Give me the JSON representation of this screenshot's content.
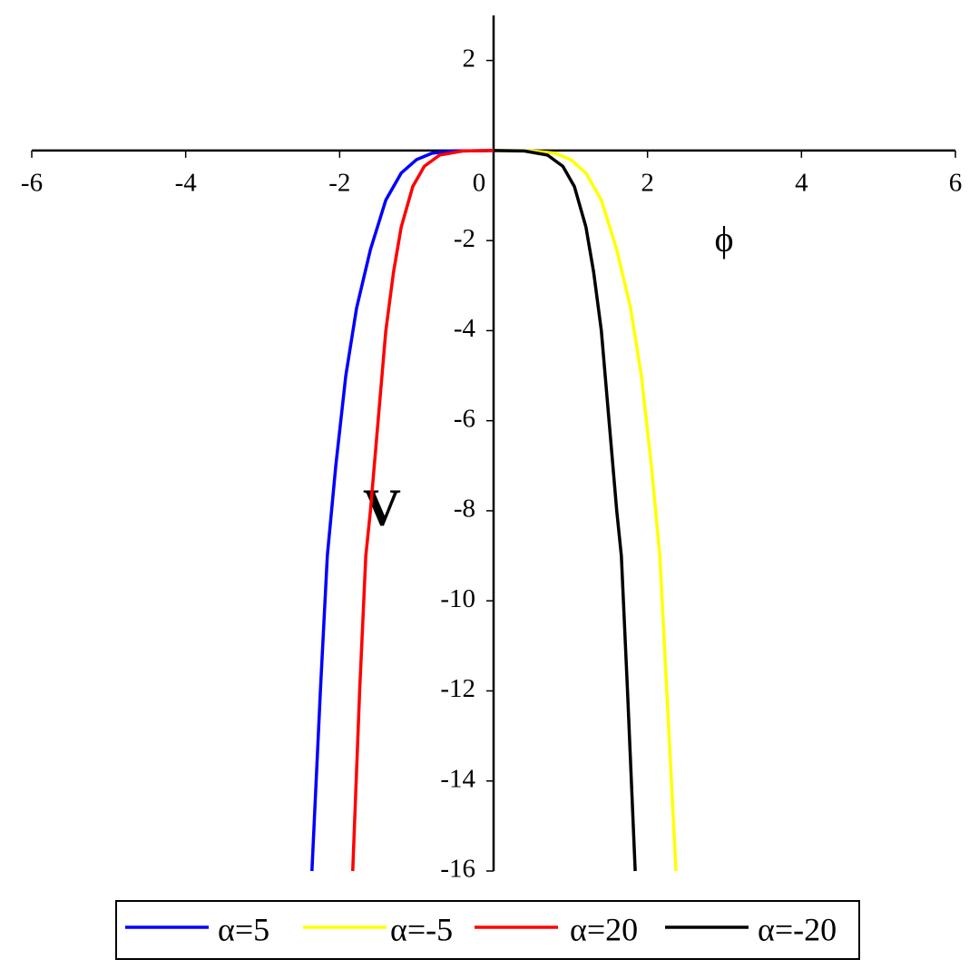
{
  "chart_data": {
    "type": "line",
    "x_label": "ϕ",
    "y_label": "V",
    "xlim": [
      -6,
      6
    ],
    "ylim": [
      -16,
      3
    ],
    "xticks": [
      -6,
      -4,
      -2,
      0,
      2,
      4,
      6
    ],
    "yticks": [
      2,
      -2,
      -4,
      -6,
      -8,
      -10,
      -12,
      -14,
      -16
    ],
    "series": [
      {
        "name": "α=5",
        "color": "#0000ff",
        "x": [
          -2.36,
          -2.25,
          -2.16,
          -2.05,
          -1.92,
          -1.78,
          -1.6,
          -1.4,
          -1.2,
          -1.0,
          -0.8,
          -0.5,
          0
        ],
        "values": [
          -16,
          -12,
          -9,
          -7,
          -5,
          -3.5,
          -2.2,
          -1.1,
          -0.5,
          -0.2,
          -0.06,
          -0.01,
          0
        ]
      },
      {
        "name": "α=-5",
        "color": "#ffff00",
        "x": [
          0,
          0.5,
          0.8,
          1.0,
          1.2,
          1.4,
          1.6,
          1.78,
          1.92,
          2.05,
          2.16,
          2.25,
          2.37
        ],
        "values": [
          0,
          -0.01,
          -0.06,
          -0.2,
          -0.5,
          -1.1,
          -2.2,
          -3.5,
          -5,
          -7,
          -9,
          -12,
          -16
        ]
      },
      {
        "name": "α=20",
        "color": "#ff0000",
        "x": [
          -1.83,
          -1.74,
          -1.66,
          -1.6,
          -1.5,
          -1.4,
          -1.3,
          -1.2,
          -1.05,
          -0.9,
          -0.7,
          -0.4,
          0
        ],
        "values": [
          -16,
          -12,
          -9,
          -8,
          -6,
          -4,
          -2.7,
          -1.7,
          -0.8,
          -0.35,
          -0.1,
          -0.01,
          0
        ]
      },
      {
        "name": "α=-20",
        "color": "#000000",
        "x": [
          0,
          0.4,
          0.7,
          0.9,
          1.05,
          1.2,
          1.3,
          1.4,
          1.5,
          1.6,
          1.66,
          1.74,
          1.84
        ],
        "values": [
          0,
          -0.01,
          -0.1,
          -0.35,
          -0.8,
          -1.7,
          -2.7,
          -4,
          -6,
          -8,
          -9,
          -12,
          -16
        ]
      }
    ]
  }
}
